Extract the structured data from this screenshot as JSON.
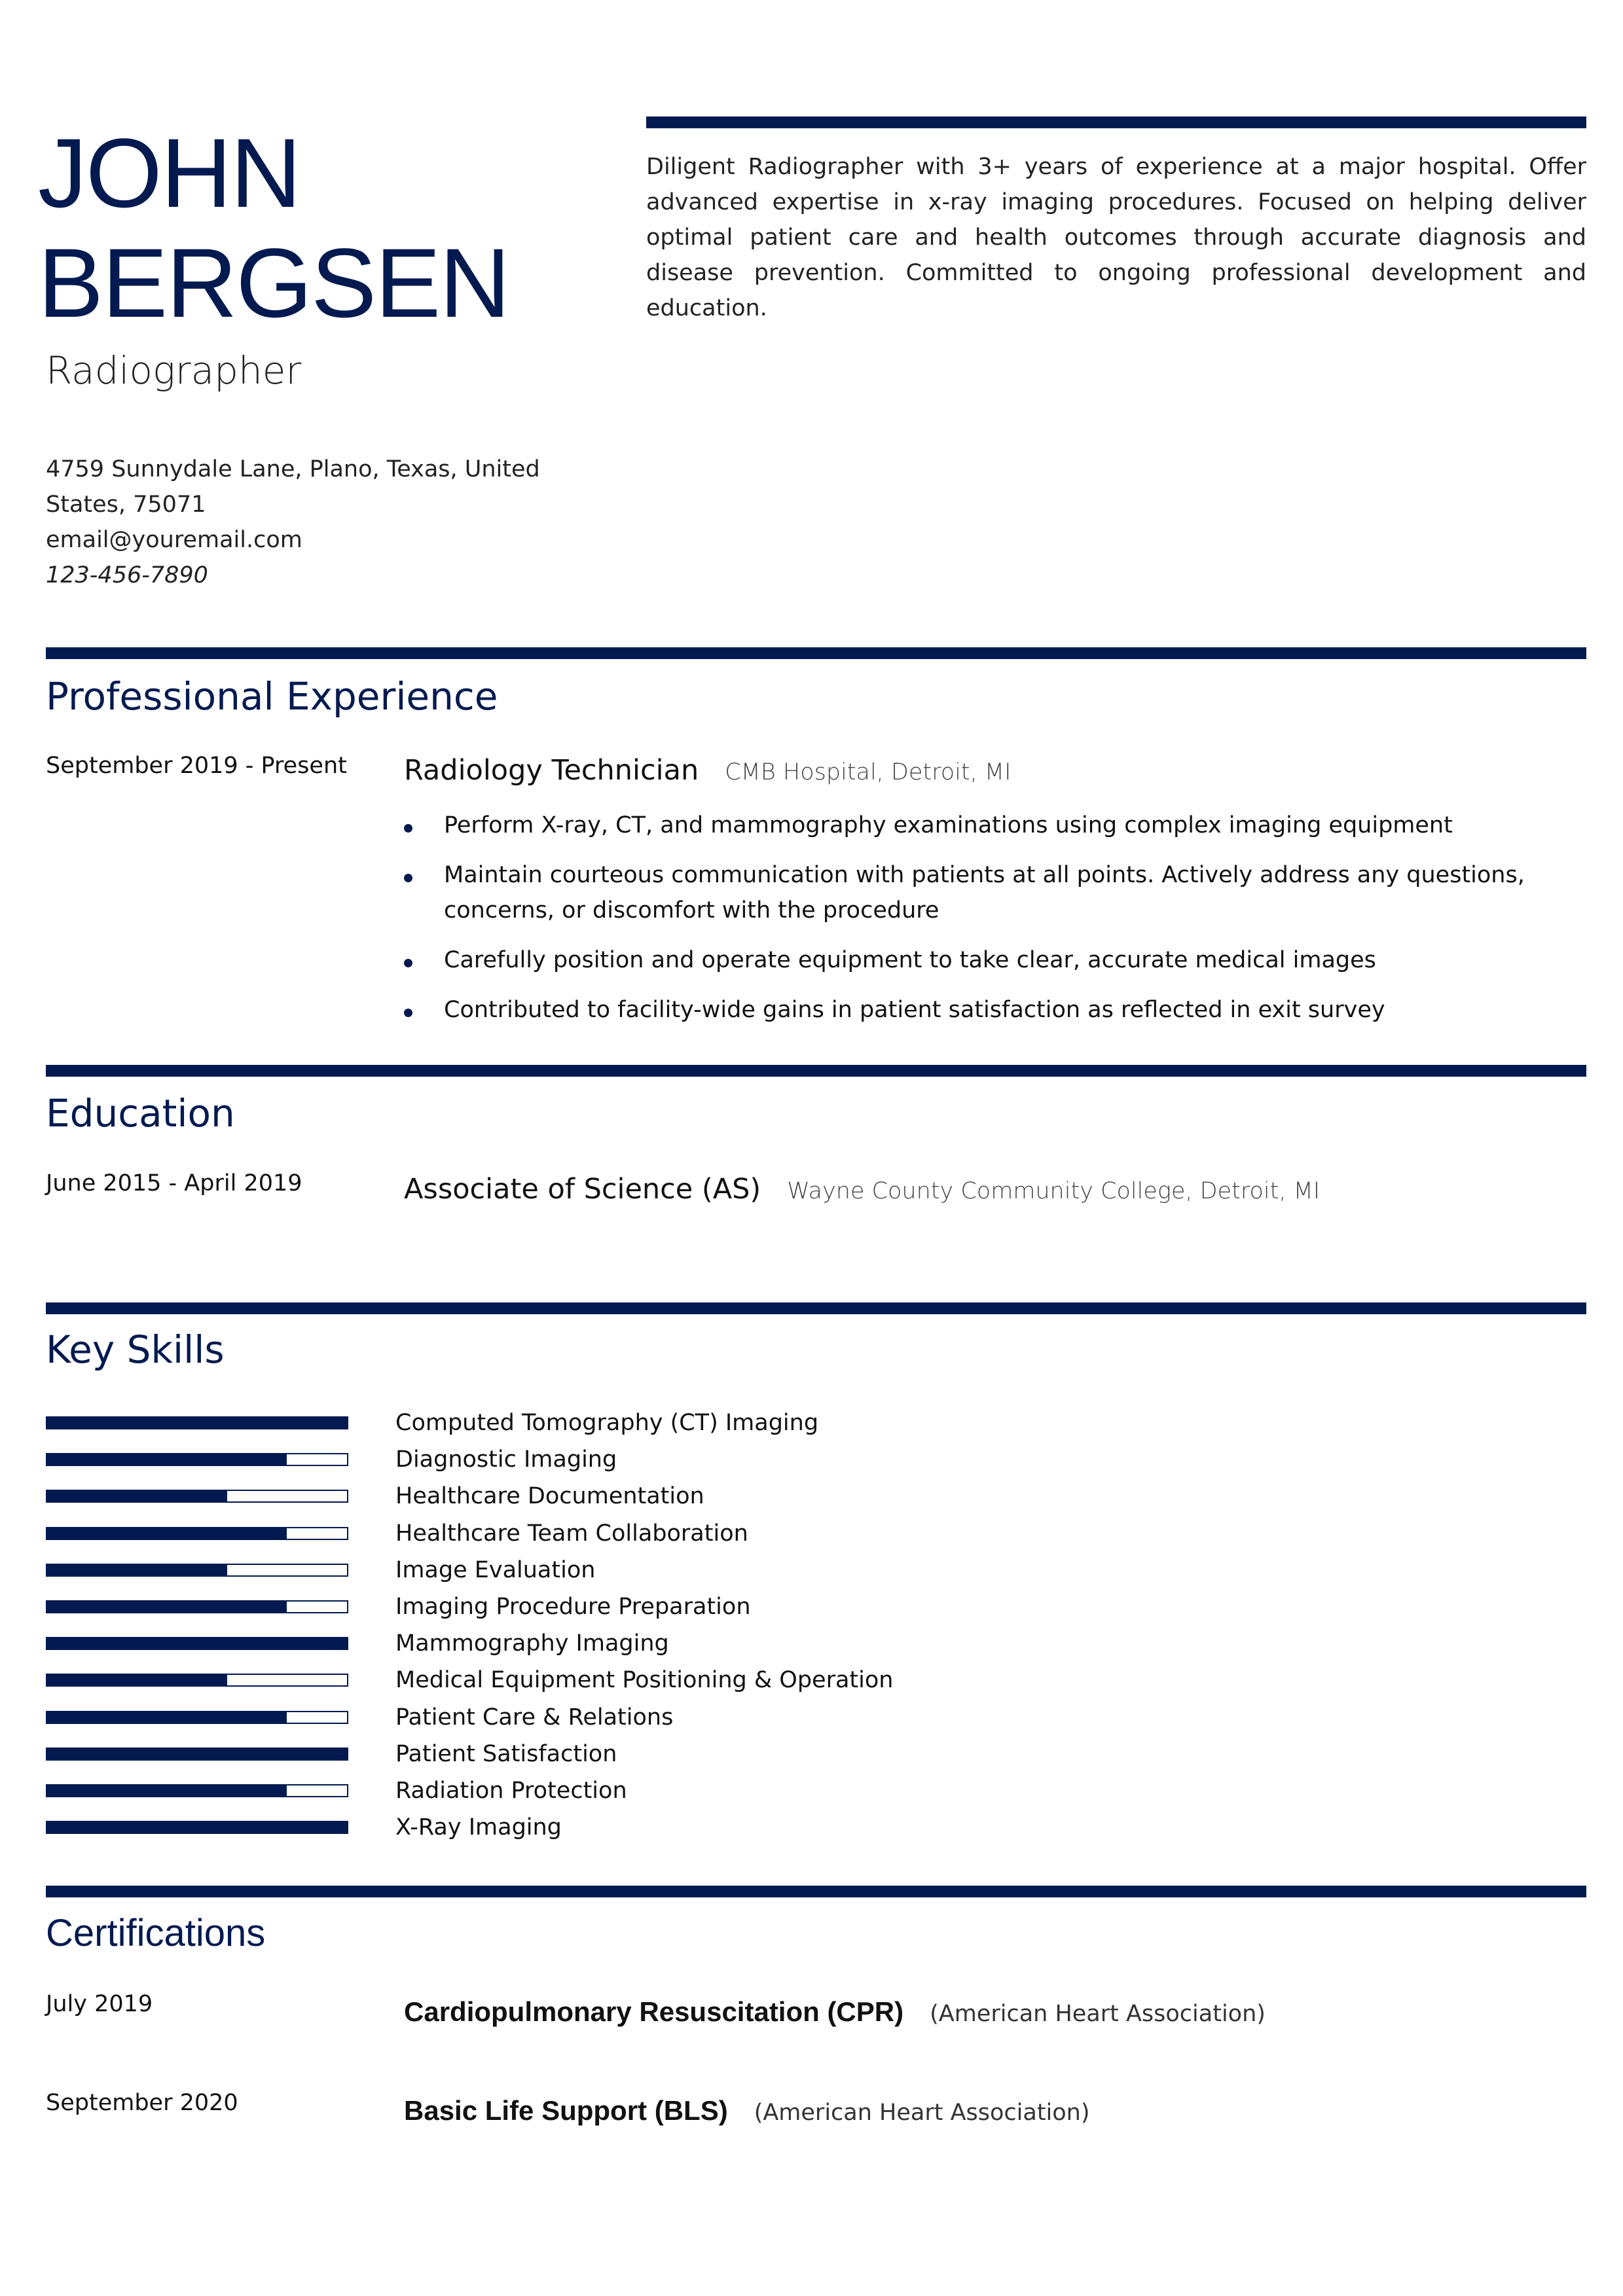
{
  "header": {
    "first_name": "JOHN",
    "last_name": "BERGSEN",
    "job_title": "Radiographer",
    "address_line1": "4759 Sunnydale Lane, Plano, Texas, United",
    "address_line2": "States, 75071",
    "email": "email@youremail.com",
    "phone": "123-456-7890",
    "summary": "Diligent Radiographer with 3+ years of experience at a major hospital. Offer advanced expertise in x-ray imaging procedures. Focused on helping deliver optimal patient care and health outcomes through accurate diagnosis and disease prevention. Committed to ongoing professional development and education."
  },
  "accent_color": "#021a50",
  "experience": {
    "title": "Professional Experience",
    "items": [
      {
        "dates": "September 2019 - Present",
        "role": "Radiology Technician",
        "org": "CMB Hospital, Detroit, MI",
        "bullets": [
          "Perform X-ray, CT, and mammography examinations using complex imaging equipment",
          "Maintain courteous communication with patients at all points. Actively address any questions, concerns, or discomfort with the procedure",
          "Carefully position and operate equipment to take clear, accurate medical images",
          "Contributed to facility-wide gains in patient satisfaction as reflected in exit survey"
        ]
      }
    ]
  },
  "education": {
    "title": "Education",
    "items": [
      {
        "dates": "June 2015 - April 2019",
        "degree": "Associate of Science (AS)",
        "school": "Wayne County Community College, Detroit, MI"
      }
    ]
  },
  "skills": {
    "title": "Key Skills",
    "items": [
      {
        "name": "Computed Tomography (CT) Imaging",
        "level": 1.0
      },
      {
        "name": "Diagnostic Imaging",
        "level": 0.8
      },
      {
        "name": "Healthcare Documentation",
        "level": 0.6
      },
      {
        "name": "Healthcare Team Collaboration",
        "level": 0.8
      },
      {
        "name": "Image Evaluation",
        "level": 0.6
      },
      {
        "name": "Imaging Procedure Preparation",
        "level": 0.8
      },
      {
        "name": "Mammography Imaging",
        "level": 1.0
      },
      {
        "name": "Medical Equipment Positioning & Operation",
        "level": 0.6
      },
      {
        "name": "Patient Care & Relations",
        "level": 0.8
      },
      {
        "name": "Patient Satisfaction",
        "level": 1.0
      },
      {
        "name": "Radiation Protection",
        "level": 0.8
      },
      {
        "name": "X-Ray Imaging",
        "level": 1.0
      }
    ]
  },
  "certifications": {
    "title": "Certifications",
    "items": [
      {
        "date": "July 2019",
        "name": "Cardiopulmonary Resuscitation (CPR)",
        "issuer": "(American Heart Association)"
      },
      {
        "date": "September 2020",
        "name": "Basic Life Support (BLS)",
        "issuer": "(American Heart Association)"
      }
    ]
  }
}
